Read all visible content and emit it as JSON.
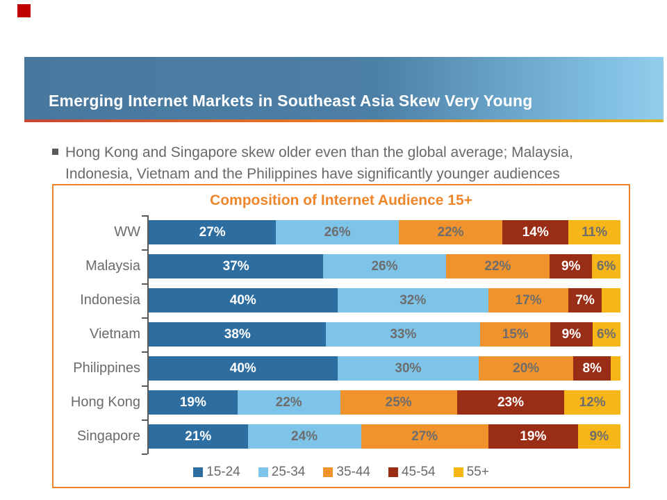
{
  "slide": {
    "corner_mark_color": "#C00000"
  },
  "header": {
    "title": "Emerging Internet Markets in Southeast Asia Skew Very Young",
    "bar_color_left": "#49789E",
    "bar_color_right": "#93CDEC",
    "underline_colors": [
      "#C74634",
      "#E87722",
      "#E5B31C"
    ]
  },
  "bullet": {
    "lines": [
      "Hong Kong and Singapore skew older even than the global average; Malaysia,",
      "Indonesia, Vietnam and the Philippines have significantly younger audiences"
    ]
  },
  "chart_data": {
    "type": "bar",
    "stacked": true,
    "orientation": "horizontal",
    "title": "Composition of Internet Audience 15+",
    "title_color": "#F0862B",
    "border_color": "#E8802C",
    "axis_color": "#595959",
    "grid": false,
    "xlim": [
      0,
      100
    ],
    "categories": [
      "WW",
      "Malaysia",
      "Indonesia",
      "Vietnam",
      "Philippines",
      "Hong Kong",
      "Singapore"
    ],
    "series": [
      {
        "name": "15-24",
        "color": "#2E6DA0",
        "label_color": "#FFFFFF",
        "values": [
          27,
          37,
          40,
          38,
          40,
          19,
          21
        ]
      },
      {
        "name": "25-34",
        "color": "#7EC3E8",
        "label_color": "#6D6D6D",
        "values": [
          26,
          26,
          32,
          33,
          30,
          22,
          24
        ]
      },
      {
        "name": "35-44",
        "color": "#F0932D",
        "label_color": "#6D6D6D",
        "values": [
          22,
          22,
          17,
          15,
          20,
          25,
          27
        ]
      },
      {
        "name": "45-54",
        "color": "#9A2D15",
        "label_color": "#FFFFFF",
        "values": [
          14,
          9,
          7,
          9,
          8,
          23,
          19
        ]
      },
      {
        "name": "55+",
        "color": "#F7B617",
        "label_color": "#6D6D6D",
        "values": [
          11,
          6,
          4,
          6,
          2,
          12,
          9
        ]
      }
    ],
    "data_labels": [
      [
        "27%",
        "26%",
        "22%",
        "14%",
        "11%"
      ],
      [
        "37%",
        "26%",
        "22%",
        "9%",
        "6%"
      ],
      [
        "40%",
        "32%",
        "17%",
        "7%",
        ""
      ],
      [
        "38%",
        "33%",
        "15%",
        "9%",
        "6%"
      ],
      [
        "40%",
        "30%",
        "20%",
        "8%",
        ""
      ],
      [
        "19%",
        "22%",
        "25%",
        "23%",
        "12%"
      ],
      [
        "21%",
        "24%",
        "27%",
        "19%",
        "9%"
      ]
    ],
    "legend": [
      "15-24",
      "25-34",
      "35-44",
      "45-54",
      "55+"
    ],
    "legend_position": "bottom"
  }
}
